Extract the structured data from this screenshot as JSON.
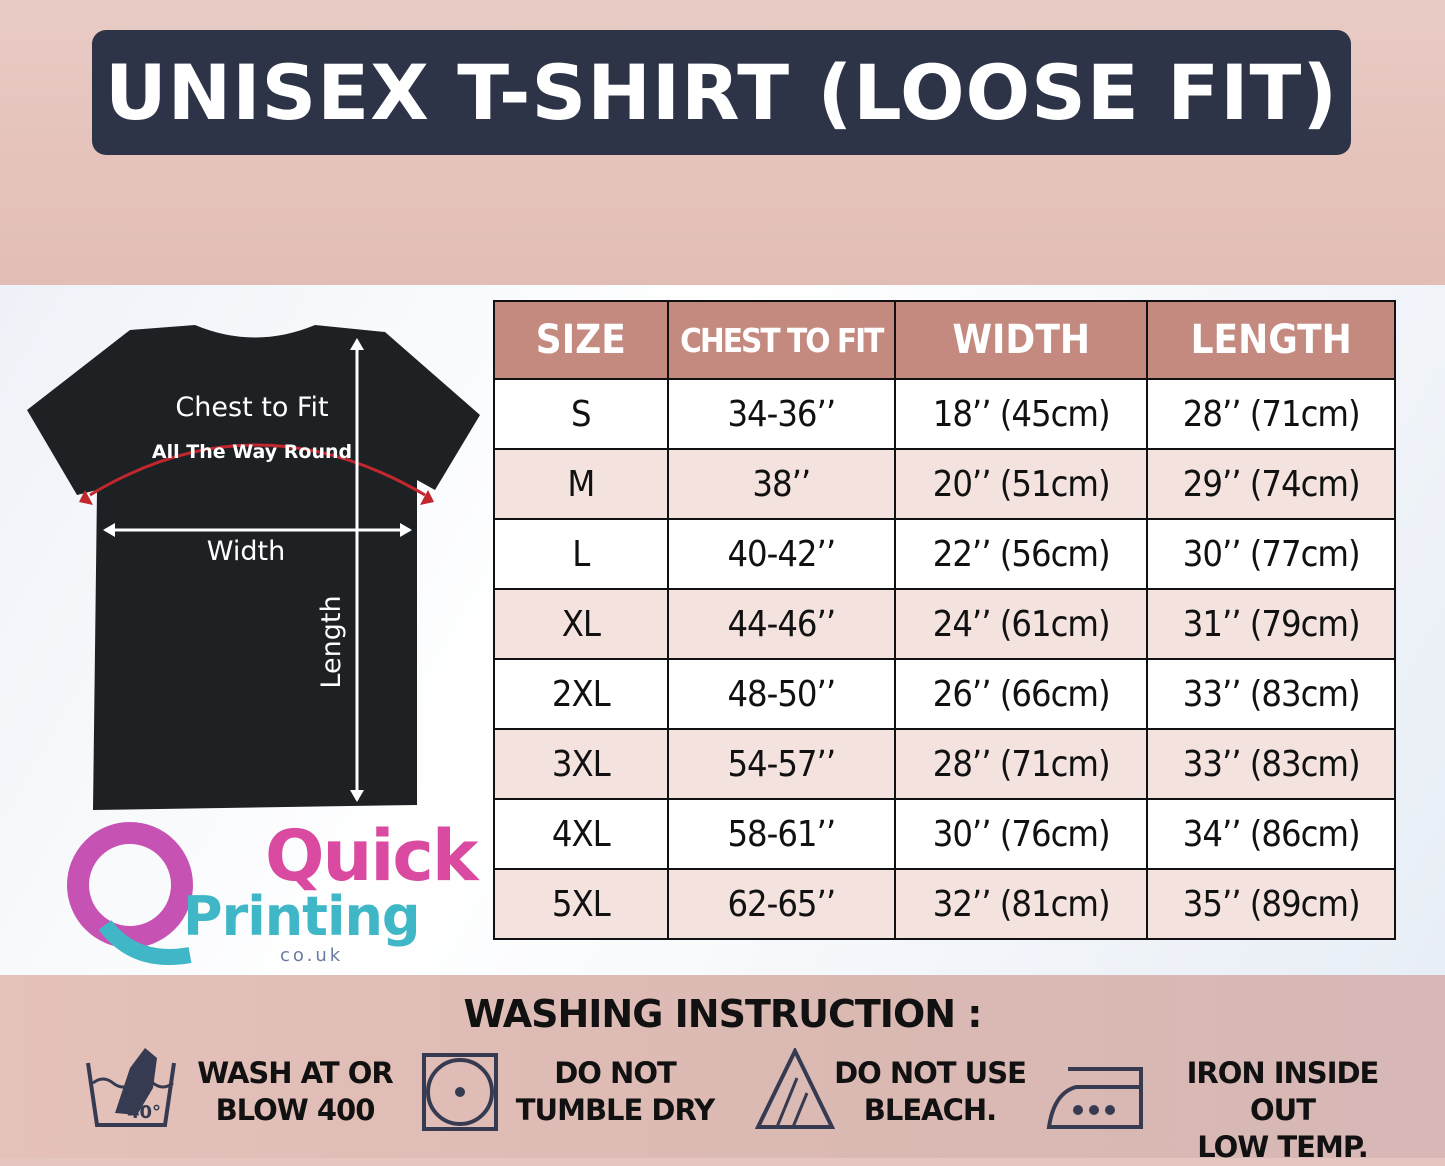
{
  "title": "UNISEX T-SHIRT (LOOSE FIT)",
  "diagram": {
    "chest_label": "Chest to Fit",
    "chest_sub": "All The Way Round",
    "width_label": "Width",
    "length_label": "Length"
  },
  "logo": {
    "line1": "Quick",
    "line2": "Printing",
    "line3": "co.uk"
  },
  "table": {
    "headers": [
      "SIZE",
      "CHEST TO FIT",
      "WIDTH",
      "LENGTH"
    ],
    "rows": [
      [
        "S",
        "34-36’’",
        "18’’ (45cm)",
        "28’’ (71cm)"
      ],
      [
        "M",
        "38’’",
        "20’’ (51cm)",
        "29’’ (74cm)"
      ],
      [
        "L",
        "40-42’’",
        "22’’ (56cm)",
        "30’’ (77cm)"
      ],
      [
        "XL",
        "44-46’’",
        "24’’ (61cm)",
        "31’’ (79cm)"
      ],
      [
        "2XL",
        "48-50’’",
        "26’’ (66cm)",
        "33’’ (83cm)"
      ],
      [
        "3XL",
        "54-57’’",
        "28’’ (71cm)",
        "33’’ (83cm)"
      ],
      [
        "4XL",
        "58-61’’",
        "30’’ (76cm)",
        "34’’ (86cm)"
      ],
      [
        "5XL",
        "62-65’’",
        "32’’ (81cm)",
        "35’’ (89cm)"
      ]
    ]
  },
  "washing": {
    "title": "WASHING INSTRUCTION :",
    "items": [
      {
        "icon": "hand-wash-40-icon",
        "line1": "WASH AT OR",
        "line2": "BLOW 400",
        "temp": "40°"
      },
      {
        "icon": "do-not-tumble-dry-icon",
        "line1": "DO NOT",
        "line2": "TUMBLE DRY"
      },
      {
        "icon": "do-not-bleach-icon",
        "line1": "DO NOT USE",
        "line2": "BLEACH."
      },
      {
        "icon": "iron-low-temp-icon",
        "line1": "IRON INSIDE OUT",
        "line2": "LOW TEMP."
      }
    ]
  },
  "colors": {
    "title_bg": "#2e3447",
    "header_bg": "#c48a80",
    "alt_row": "#f3e2de",
    "icon": "#363b52"
  }
}
